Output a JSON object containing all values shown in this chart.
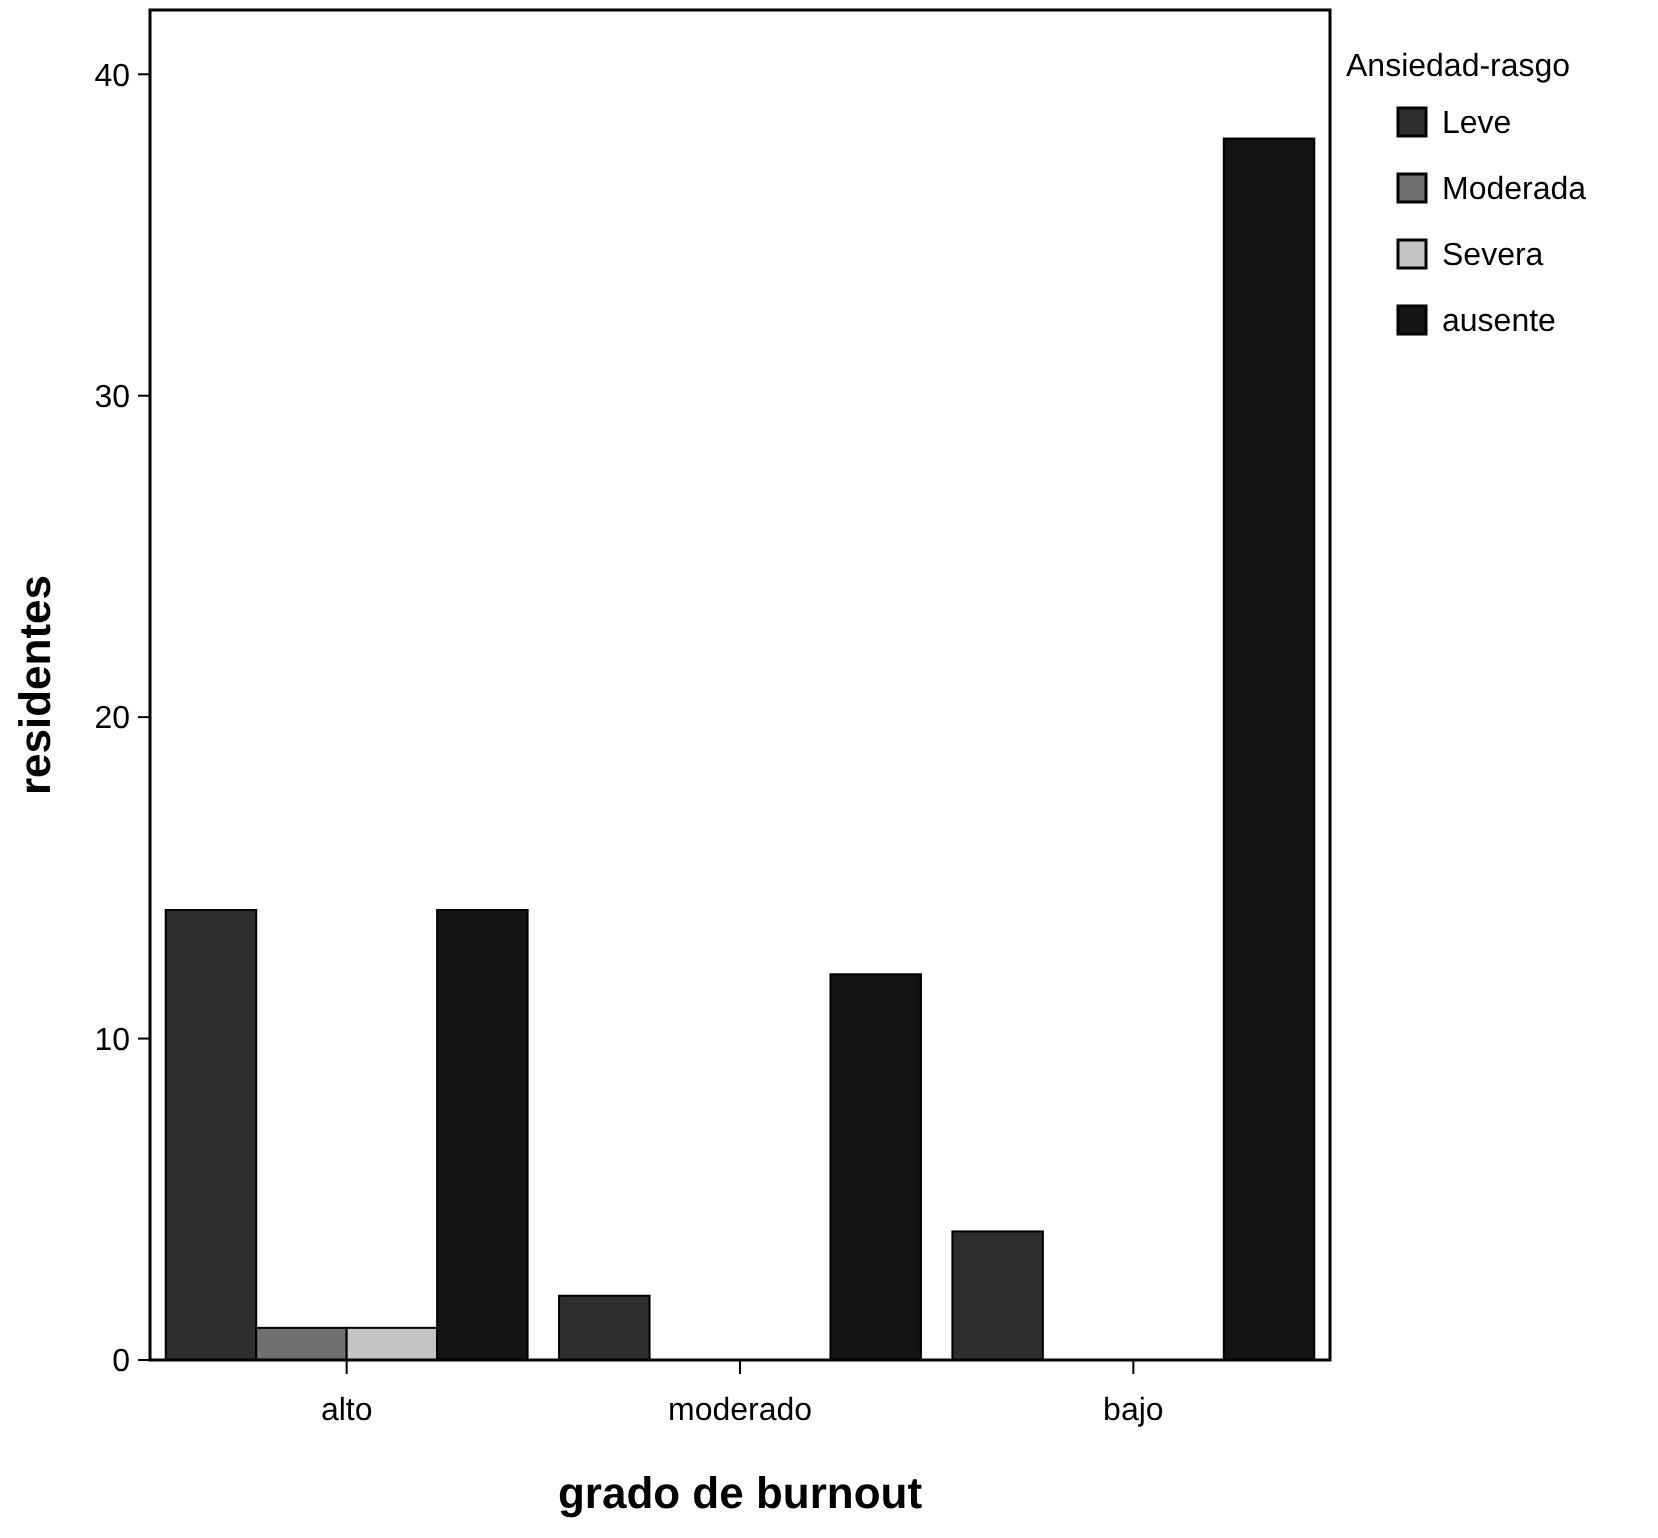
{
  "chart_data": {
    "type": "bar",
    "xlabel": "grado de burnout",
    "ylabel": "residentes",
    "legend_title": "Ansiedad-rasgo",
    "categories": [
      "alto",
      "moderado",
      "bajo"
    ],
    "series": [
      {
        "name": "Leve",
        "color": "#2e2e2e",
        "values": [
          14,
          2,
          4
        ]
      },
      {
        "name": "Moderada",
        "color": "#707070",
        "values": [
          1,
          0,
          0
        ]
      },
      {
        "name": "Severa",
        "color": "#c4c4c4",
        "values": [
          1,
          0,
          0
        ]
      },
      {
        "name": "ausente",
        "color": "#141414",
        "values": [
          14,
          12,
          38
        ]
      }
    ],
    "ylim": [
      0,
      42
    ],
    "yticks": [
      0,
      10,
      20,
      30,
      40
    ],
    "grid": false,
    "legend": "top right"
  }
}
